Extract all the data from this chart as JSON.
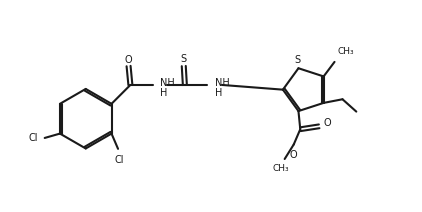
{
  "bg_color": "#ffffff",
  "line_color": "#1a1a1a",
  "line_width": 1.5,
  "fig_width": 4.22,
  "fig_height": 2.12,
  "dpi": 100,
  "xlim": [
    0,
    11.0
  ],
  "ylim": [
    0,
    5.8
  ]
}
